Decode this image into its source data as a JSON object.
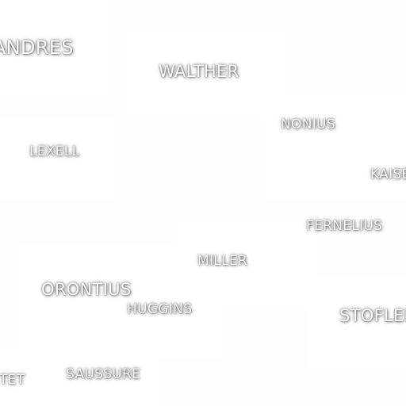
{
  "map": {
    "labels": [
      {
        "id": "andres",
        "text": "ANDRES"
      },
      {
        "id": "walther",
        "text": "WALTHER"
      },
      {
        "id": "nonius",
        "text": "NONIUS"
      },
      {
        "id": "lexell",
        "text": "LEXELL"
      },
      {
        "id": "kaiser",
        "text": "KAISER"
      },
      {
        "id": "fernelius",
        "text": "FERNELIUS"
      },
      {
        "id": "miller",
        "text": "MILLER"
      },
      {
        "id": "orontius",
        "text": "ORONTIUS"
      },
      {
        "id": "huggins",
        "text": "HUGGINS"
      },
      {
        "id": "stofler",
        "text": "STOFLER"
      },
      {
        "id": "pictet",
        "text": "PICTET"
      },
      {
        "id": "saussure",
        "text": "SAUSSURE"
      }
    ]
  }
}
